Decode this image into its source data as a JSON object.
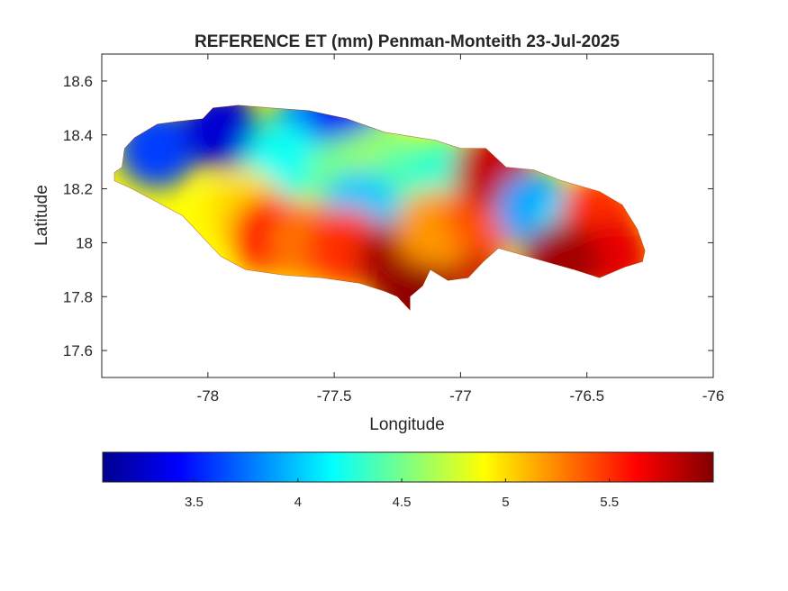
{
  "chart_data": {
    "type": "heatmap",
    "title": "REFERENCE ET (mm) Penman-Monteith 23-Jul-2025",
    "xlabel": "Longitude",
    "ylabel": "Latitude",
    "xlim": [
      -78.42,
      -76
    ],
    "ylim": [
      17.5,
      18.7
    ],
    "xticks": [
      -78,
      -77.5,
      -77,
      -76.5,
      -76
    ],
    "xtick_labels": [
      "-78",
      "-77.5",
      "-77",
      "-76.5",
      "-76"
    ],
    "yticks": [
      17.6,
      17.8,
      18,
      18.2,
      18.4,
      18.6
    ],
    "ytick_labels": [
      "17.6",
      "17.8",
      "18",
      "18.2",
      "18.4",
      "18.6"
    ],
    "grid": false,
    "colormap": "jet",
    "colorbar": {
      "location": "bottom",
      "clim": [
        3.06,
        6.0
      ],
      "ticks": [
        3.5,
        4,
        4.5,
        5,
        5.5
      ],
      "tick_labels": [
        "3.5",
        "4",
        "4.5",
        "5",
        "5.5"
      ],
      "stops": [
        "#00008f",
        "#0000ff",
        "#0080ff",
        "#00ffff",
        "#80ff80",
        "#ffff00",
        "#ff8000",
        "#ff0000",
        "#800000"
      ]
    },
    "outline": [
      [
        -78.37,
        18.26
      ],
      [
        -78.34,
        18.28
      ],
      [
        -78.33,
        18.35
      ],
      [
        -78.29,
        18.39
      ],
      [
        -78.2,
        18.44
      ],
      [
        -78.12,
        18.45
      ],
      [
        -78.02,
        18.46
      ],
      [
        -77.98,
        18.5
      ],
      [
        -77.88,
        18.51
      ],
      [
        -77.75,
        18.5
      ],
      [
        -77.6,
        18.49
      ],
      [
        -77.45,
        18.46
      ],
      [
        -77.3,
        18.41
      ],
      [
        -77.1,
        18.38
      ],
      [
        -77.0,
        18.35
      ],
      [
        -76.9,
        18.35
      ],
      [
        -76.82,
        18.28
      ],
      [
        -76.71,
        18.27
      ],
      [
        -76.6,
        18.23
      ],
      [
        -76.45,
        18.19
      ],
      [
        -76.36,
        18.14
      ],
      [
        -76.3,
        18.05
      ],
      [
        -76.27,
        17.97
      ],
      [
        -76.28,
        17.93
      ],
      [
        -76.35,
        17.91
      ],
      [
        -76.45,
        17.87
      ],
      [
        -76.55,
        17.9
      ],
      [
        -76.7,
        17.94
      ],
      [
        -76.85,
        17.98
      ],
      [
        -76.91,
        17.93
      ],
      [
        -76.97,
        17.87
      ],
      [
        -77.05,
        17.86
      ],
      [
        -77.12,
        17.9
      ],
      [
        -77.15,
        17.84
      ],
      [
        -77.2,
        17.8
      ],
      [
        -77.2,
        17.75
      ],
      [
        -77.25,
        17.8
      ],
      [
        -77.3,
        17.82
      ],
      [
        -77.4,
        17.85
      ],
      [
        -77.55,
        17.87
      ],
      [
        -77.7,
        17.88
      ],
      [
        -77.85,
        17.9
      ],
      [
        -77.95,
        17.95
      ],
      [
        -78.02,
        18.02
      ],
      [
        -78.1,
        18.1
      ],
      [
        -78.2,
        18.15
      ],
      [
        -78.3,
        18.2
      ],
      [
        -78.37,
        18.23
      ]
    ],
    "zones": [
      {
        "lon": -78.2,
        "lat": 18.35,
        "value": 3.6
      },
      {
        "lon": -77.95,
        "lat": 18.42,
        "value": 3.3
      },
      {
        "lon": -77.6,
        "lat": 18.42,
        "value": 3.8
      },
      {
        "lon": -77.45,
        "lat": 18.44,
        "value": 3.4
      },
      {
        "lon": -77.7,
        "lat": 18.3,
        "value": 4.2
      },
      {
        "lon": -77.45,
        "lat": 18.25,
        "value": 4.5
      },
      {
        "lon": -77.3,
        "lat": 18.3,
        "value": 4.6
      },
      {
        "lon": -77.2,
        "lat": 18.22,
        "value": 4.4
      },
      {
        "lon": -77.05,
        "lat": 18.25,
        "value": 4.3
      },
      {
        "lon": -77.4,
        "lat": 18.12,
        "value": 4.0
      },
      {
        "lon": -77.85,
        "lat": 18.12,
        "value": 5.0
      },
      {
        "lon": -77.75,
        "lat": 18.03,
        "value": 5.6
      },
      {
        "lon": -77.6,
        "lat": 18.0,
        "value": 5.3
      },
      {
        "lon": -77.45,
        "lat": 17.98,
        "value": 5.5
      },
      {
        "lon": -77.25,
        "lat": 17.93,
        "value": 5.9
      },
      {
        "lon": -77.0,
        "lat": 17.95,
        "value": 5.8
      },
      {
        "lon": -77.1,
        "lat": 18.05,
        "value": 5.2
      },
      {
        "lon": -76.9,
        "lat": 18.1,
        "value": 5.4
      },
      {
        "lon": -76.87,
        "lat": 18.27,
        "value": 5.8
      },
      {
        "lon": -76.7,
        "lat": 18.12,
        "value": 3.9
      },
      {
        "lon": -76.55,
        "lat": 18.05,
        "value": 4.1
      },
      {
        "lon": -76.45,
        "lat": 18.1,
        "value": 5.5
      },
      {
        "lon": -76.4,
        "lat": 17.95,
        "value": 5.7
      },
      {
        "lon": -76.6,
        "lat": 17.93,
        "value": 5.9
      },
      {
        "lon": -77.17,
        "lat": 17.78,
        "value": 5.95
      }
    ]
  }
}
